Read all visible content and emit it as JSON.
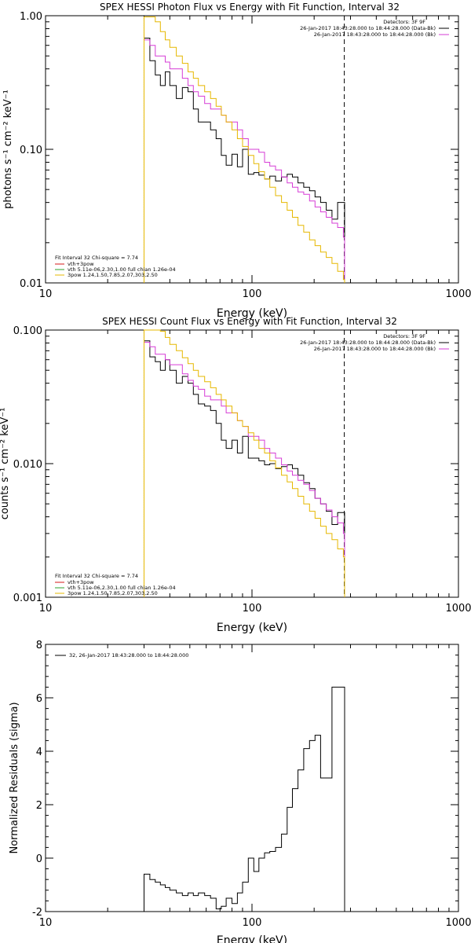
{
  "chart_data": [
    {
      "type": "line",
      "title": "SPEX HESSI Photon Flux vs Energy with Fit Function, Interval 32",
      "xlabel": "Energy (keV)",
      "ylabel": "photons s⁻¹ cm⁻² keV⁻¹",
      "xscale": "log",
      "yscale": "log",
      "xlim": [
        10,
        1000
      ],
      "ylim": [
        0.01,
        1.0
      ],
      "xticks": [
        10,
        100,
        1000
      ],
      "xtick_labels": [
        "10",
        "100",
        "1000"
      ],
      "yticks": [
        0.01,
        0.1,
        1.0
      ],
      "ytick_labels": [
        "0.01",
        "0.10",
        "1.00"
      ],
      "grid": false,
      "vlines": [
        {
          "x": 30,
          "style": "dotted",
          "color": "#000000"
        },
        {
          "x": 280,
          "style": "dashed",
          "color": "#000000"
        }
      ],
      "legend_top": {
        "placement": "top-right",
        "header": "Detectors: 3F 9F",
        "entries": [
          {
            "label": "26-Jan-2017 18:43:28.000 to 18:44:28.000 (Data-Bk)",
            "color": "#000000"
          },
          {
            "label": "26-Jan-2017 18:43:28.000 to 18:44:28.000 (Bk)",
            "color": "#d63cd6"
          }
        ]
      },
      "legend_bottom": {
        "placement": "bottom-left",
        "header": "Fit Interval 32   Chi-square = 7.74",
        "entries": [
          {
            "label": "vth+3pow",
            "color": "#d61a1a"
          },
          {
            "label": "vth 5.11e-06,2.30,1.00  full chian 1.26e-04",
            "color": "#2ca02c"
          },
          {
            "label": "3pow 1.24,1.50,7.85,2.07,303,2.50",
            "color": "#e6b800"
          }
        ]
      },
      "series": [
        {
          "color": "#000000",
          "edges": [
            30,
            32,
            34,
            36,
            38,
            40,
            43,
            46,
            49,
            52,
            55,
            59,
            63,
            67,
            71,
            75,
            80,
            85,
            90,
            96,
            102,
            108,
            115,
            122,
            130,
            139,
            148,
            157,
            167,
            178,
            190,
            202,
            215,
            229,
            244,
            260,
            277,
            281
          ],
          "values": [
            0.68,
            0.46,
            0.36,
            0.3,
            0.38,
            0.3,
            0.24,
            0.29,
            0.27,
            0.2,
            0.16,
            0.16,
            0.14,
            0.12,
            0.09,
            0.076,
            0.092,
            0.074,
            0.1,
            0.065,
            0.067,
            0.064,
            0.06,
            0.063,
            0.058,
            0.062,
            0.065,
            0.062,
            0.056,
            0.052,
            0.049,
            0.044,
            0.04,
            0.035,
            0.03,
            0.04,
            0.04
          ]
        },
        {
          "color": "#d63cd6",
          "edges": [
            30,
            32,
            34,
            36,
            38,
            40,
            43,
            46,
            49,
            52,
            55,
            59,
            63,
            67,
            71,
            75,
            80,
            85,
            90,
            96,
            102,
            108,
            115,
            122,
            130,
            139,
            148,
            157,
            167,
            178,
            190,
            202,
            215,
            229,
            244,
            260,
            277,
            281
          ],
          "values": [
            0.66,
            0.6,
            0.5,
            0.5,
            0.45,
            0.4,
            0.4,
            0.34,
            0.3,
            0.27,
            0.25,
            0.22,
            0.2,
            0.2,
            0.18,
            0.16,
            0.16,
            0.14,
            0.12,
            0.1,
            0.1,
            0.095,
            0.08,
            0.075,
            0.07,
            0.062,
            0.056,
            0.052,
            0.048,
            0.046,
            0.041,
            0.037,
            0.034,
            0.031,
            0.028,
            0.026,
            0.022
          ]
        },
        {
          "color": "#e6b800",
          "edges": [
            30,
            32,
            34,
            36,
            38,
            40,
            43,
            46,
            49,
            52,
            55,
            59,
            63,
            67,
            71,
            75,
            80,
            85,
            90,
            96,
            102,
            108,
            115,
            122,
            130,
            139,
            148,
            157,
            167,
            178,
            190,
            202,
            215,
            229,
            244,
            260,
            277,
            281
          ],
          "values": [
            0.98,
            0.98,
            0.9,
            0.76,
            0.66,
            0.58,
            0.5,
            0.44,
            0.38,
            0.34,
            0.3,
            0.27,
            0.24,
            0.21,
            0.18,
            0.16,
            0.14,
            0.12,
            0.105,
            0.09,
            0.078,
            0.068,
            0.06,
            0.052,
            0.045,
            0.04,
            0.035,
            0.031,
            0.027,
            0.024,
            0.021,
            0.019,
            0.017,
            0.0155,
            0.014,
            0.0122,
            0.0106
          ]
        }
      ]
    },
    {
      "type": "line",
      "title": "SPEX HESSI Count Flux vs Energy with Fit Function, Interval 32",
      "xlabel": "Energy (keV)",
      "ylabel": "counts s⁻¹ cm⁻² keV⁻¹",
      "xscale": "log",
      "yscale": "log",
      "xlim": [
        10,
        1000
      ],
      "ylim": [
        0.001,
        0.1
      ],
      "xticks": [
        10,
        100,
        1000
      ],
      "xtick_labels": [
        "10",
        "100",
        "1000"
      ],
      "yticks": [
        0.001,
        0.01,
        0.1
      ],
      "ytick_labels": [
        "0.001",
        "0.010",
        "0.100"
      ],
      "grid": false,
      "vlines": [
        {
          "x": 30,
          "style": "dotted",
          "color": "#000000"
        },
        {
          "x": 280,
          "style": "dashed",
          "color": "#000000"
        }
      ],
      "legend_top": {
        "placement": "top-right",
        "header": "Detectors: 3F 9F",
        "entries": [
          {
            "label": "26-Jan-2017 18:43:28.000 to 18:44:28.000 (Data-Bk)",
            "color": "#000000"
          },
          {
            "label": "26-Jan-2017 18:43:28.000 to 18:44:28.000 (Bk)",
            "color": "#d63cd6"
          }
        ]
      },
      "legend_bottom": {
        "placement": "bottom-left",
        "header": "Fit Interval 32   Chi-square = 7.74",
        "entries": [
          {
            "label": "vth+3pow",
            "color": "#d61a1a"
          },
          {
            "label": "vth 5.11e-06,2.30,1.00  full chian 1.26e-04",
            "color": "#2ca02c"
          },
          {
            "label": "3pow 1.24,1.50,7.85,2.07,303,2.50",
            "color": "#e6b800"
          }
        ]
      },
      "series": [
        {
          "color": "#000000",
          "edges": [
            30,
            32,
            34,
            36,
            38,
            40,
            43,
            46,
            49,
            52,
            55,
            59,
            63,
            67,
            71,
            75,
            80,
            85,
            90,
            96,
            102,
            108,
            115,
            122,
            130,
            139,
            148,
            157,
            167,
            178,
            190,
            202,
            215,
            229,
            244,
            260,
            277,
            281
          ],
          "values": [
            0.083,
            0.063,
            0.058,
            0.05,
            0.06,
            0.05,
            0.04,
            0.045,
            0.04,
            0.033,
            0.028,
            0.027,
            0.025,
            0.02,
            0.015,
            0.013,
            0.015,
            0.012,
            0.016,
            0.011,
            0.011,
            0.0105,
            0.0098,
            0.01,
            0.0092,
            0.0095,
            0.0098,
            0.0092,
            0.0082,
            0.0072,
            0.0065,
            0.0055,
            0.005,
            0.0044,
            0.0035,
            0.0043,
            0.0043
          ]
        },
        {
          "color": "#d63cd6",
          "edges": [
            30,
            32,
            34,
            36,
            38,
            40,
            43,
            46,
            49,
            52,
            55,
            59,
            63,
            67,
            71,
            75,
            80,
            85,
            90,
            96,
            102,
            108,
            115,
            122,
            130,
            139,
            148,
            157,
            167,
            178,
            190,
            202,
            215,
            229,
            244,
            260,
            277,
            281
          ],
          "values": [
            0.081,
            0.075,
            0.066,
            0.066,
            0.06,
            0.055,
            0.055,
            0.047,
            0.042,
            0.038,
            0.036,
            0.032,
            0.03,
            0.03,
            0.027,
            0.024,
            0.024,
            0.021,
            0.019,
            0.016,
            0.016,
            0.015,
            0.013,
            0.012,
            0.011,
            0.0098,
            0.0088,
            0.0082,
            0.0075,
            0.007,
            0.0063,
            0.0055,
            0.005,
            0.0045,
            0.004,
            0.0036,
            0.003
          ]
        },
        {
          "color": "#e6b800",
          "edges": [
            30,
            32,
            34,
            36,
            38,
            40,
            43,
            46,
            49,
            52,
            55,
            59,
            63,
            67,
            71,
            75,
            80,
            85,
            90,
            96,
            102,
            108,
            115,
            122,
            130,
            139,
            148,
            157,
            167,
            178,
            190,
            202,
            215,
            229,
            244,
            260,
            277,
            281
          ],
          "values": [
            0.1,
            0.1,
            0.1,
            0.098,
            0.088,
            0.078,
            0.07,
            0.062,
            0.056,
            0.05,
            0.045,
            0.041,
            0.037,
            0.033,
            0.03,
            0.027,
            0.024,
            0.021,
            0.019,
            0.017,
            0.015,
            0.013,
            0.012,
            0.0105,
            0.0093,
            0.0082,
            0.0073,
            0.0065,
            0.0057,
            0.005,
            0.0044,
            0.0039,
            0.0034,
            0.003,
            0.0027,
            0.0023,
            0.002
          ]
        }
      ]
    },
    {
      "type": "line",
      "title": "",
      "xlabel": "Energy (keV)",
      "ylabel": "Normalized Residuals (sigma)",
      "xscale": "log",
      "yscale": "linear",
      "xlim": [
        10,
        1000
      ],
      "ylim": [
        -2,
        8
      ],
      "xticks": [
        10,
        100,
        1000
      ],
      "xtick_labels": [
        "10",
        "100",
        "1000"
      ],
      "yticks": [
        -2,
        0,
        2,
        4,
        6,
        8
      ],
      "ytick_labels": [
        "-2",
        "0",
        "2",
        "4",
        "6",
        "8"
      ],
      "grid": false,
      "vlines": [],
      "legend_top": {
        "placement": "top-left",
        "header": "",
        "entries": [
          {
            "label": "32, 26-Jan-2017 18:43:28.000 to 18:44:28.000",
            "color": "#000000"
          }
        ]
      },
      "legend_bottom": {
        "placement": "",
        "header": "",
        "entries": []
      },
      "series": [
        {
          "color": "#000000",
          "edges": [
            30,
            32,
            34,
            36,
            38,
            40,
            43,
            46,
            49,
            52,
            55,
            59,
            63,
            67,
            71,
            75,
            80,
            85,
            90,
            96,
            102,
            108,
            115,
            122,
            130,
            139,
            148,
            157,
            167,
            178,
            190,
            202,
            215,
            229,
            244,
            260,
            277,
            281
          ],
          "values": [
            -0.6,
            -0.8,
            -0.9,
            -1.0,
            -1.1,
            -1.2,
            -1.3,
            -1.4,
            -1.3,
            -1.4,
            -1.3,
            -1.4,
            -1.5,
            -1.9,
            -1.8,
            -1.5,
            -1.7,
            -1.3,
            -0.9,
            0.0,
            -0.5,
            0.0,
            0.2,
            0.25,
            0.4,
            0.9,
            1.9,
            2.6,
            3.3,
            4.1,
            4.4,
            4.6,
            3.0,
            3.0,
            6.4,
            6.4,
            6.4
          ]
        }
      ]
    }
  ]
}
